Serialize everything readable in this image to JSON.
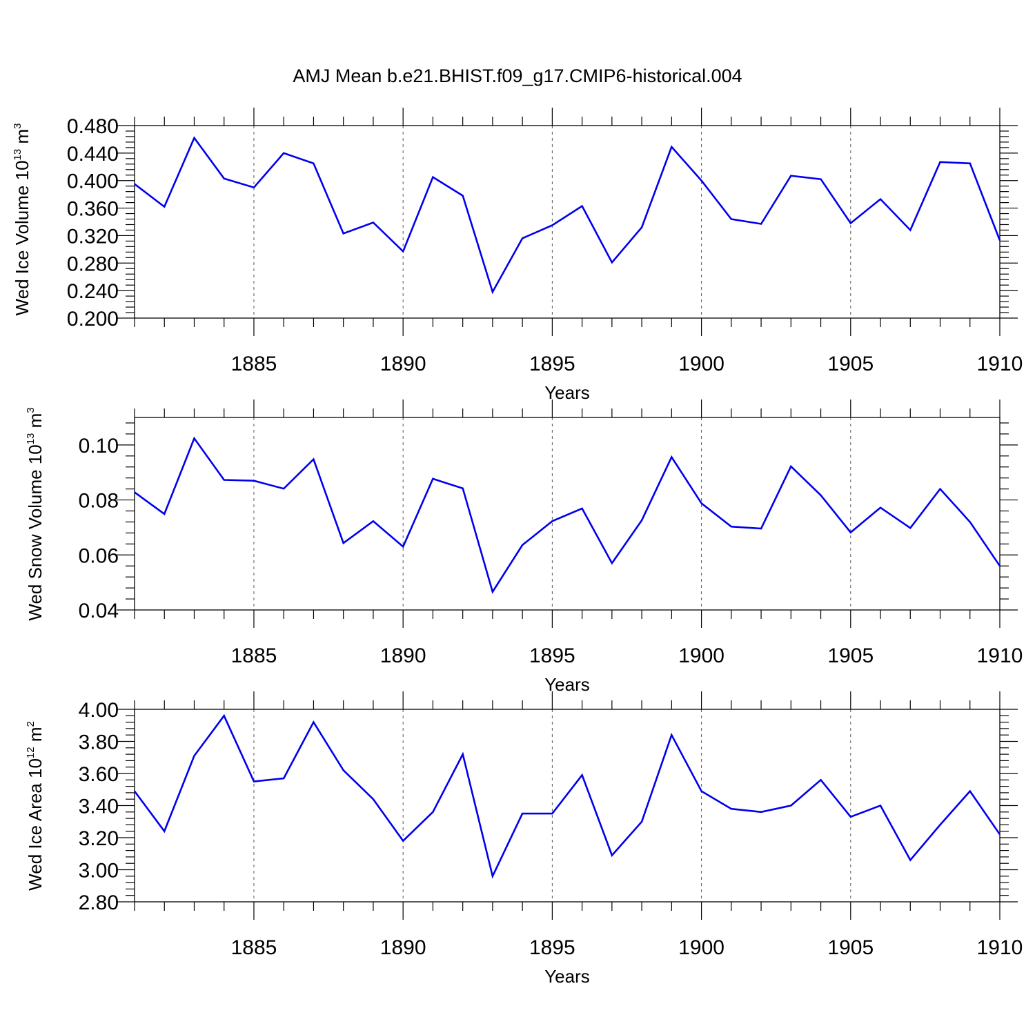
{
  "figure": {
    "title": "AMJ Mean b.e21.BHIST.f09_g17.CMIP6-historical.004"
  },
  "chart_data": [
    {
      "type": "line",
      "xlabel": "Years",
      "ylabel_base": "Wed Ice Volume 10",
      "ylabel_exp": "13",
      "ylabel_unit": " m",
      "ylabel_unit_exp": "3",
      "xlim": [
        1881,
        1910
      ],
      "ylim": [
        0.2,
        0.48
      ],
      "x_ticks": [
        "1885",
        "1890",
        "1895",
        "1900",
        "1905",
        "1910"
      ],
      "y_ticks": [
        "0.200",
        "0.240",
        "0.280",
        "0.320",
        "0.360",
        "0.400",
        "0.440",
        "0.480"
      ],
      "y_tick_values": [
        0.2,
        0.24,
        0.28,
        0.32,
        0.36,
        0.4,
        0.44,
        0.48
      ],
      "color": "#0000ee",
      "x": [
        1881,
        1882,
        1883,
        1884,
        1885,
        1886,
        1887,
        1888,
        1889,
        1890,
        1891,
        1892,
        1893,
        1894,
        1895,
        1896,
        1897,
        1898,
        1899,
        1900,
        1901,
        1902,
        1903,
        1904,
        1905,
        1906,
        1907,
        1908,
        1909,
        1910
      ],
      "values": [
        0.395,
        0.362,
        0.462,
        0.403,
        0.39,
        0.44,
        0.425,
        0.323,
        0.339,
        0.297,
        0.405,
        0.378,
        0.238,
        0.316,
        0.335,
        0.363,
        0.281,
        0.332,
        0.449,
        0.4,
        0.344,
        0.337,
        0.407,
        0.402,
        0.338,
        0.373,
        0.328,
        0.427,
        0.425,
        0.313
      ]
    },
    {
      "type": "line",
      "xlabel": "Years",
      "ylabel_base": "Wed Snow Volume 10",
      "ylabel_exp": "13",
      "ylabel_unit": " m",
      "ylabel_unit_exp": "3",
      "xlim": [
        1881,
        1910
      ],
      "ylim": [
        0.04,
        0.11
      ],
      "x_ticks": [
        "1885",
        "1890",
        "1895",
        "1900",
        "1905",
        "1910"
      ],
      "y_ticks": [
        "0.04",
        "0.06",
        "0.08",
        "0.10"
      ],
      "y_tick_values": [
        0.04,
        0.06,
        0.08,
        0.1
      ],
      "color": "#0000ee",
      "x": [
        1881,
        1882,
        1883,
        1884,
        1885,
        1886,
        1887,
        1888,
        1889,
        1890,
        1891,
        1892,
        1893,
        1894,
        1895,
        1896,
        1897,
        1898,
        1899,
        1900,
        1901,
        1902,
        1903,
        1904,
        1905,
        1906,
        1907,
        1908,
        1909,
        1910
      ],
      "values": [
        0.0828,
        0.0749,
        0.1024,
        0.0873,
        0.087,
        0.0841,
        0.0948,
        0.0643,
        0.0723,
        0.063,
        0.0877,
        0.0842,
        0.0466,
        0.0636,
        0.0723,
        0.0769,
        0.057,
        0.0726,
        0.0956,
        0.0788,
        0.0703,
        0.0696,
        0.0922,
        0.0817,
        0.0682,
        0.0772,
        0.0698,
        0.084,
        0.072,
        0.056
      ]
    },
    {
      "type": "line",
      "xlabel": "Years",
      "ylabel_base": "Wed Ice Area 10",
      "ylabel_exp": "12",
      "ylabel_unit": " m",
      "ylabel_unit_exp": "2",
      "xlim": [
        1881,
        1910
      ],
      "ylim": [
        2.8,
        4.0
      ],
      "x_ticks": [
        "1885",
        "1890",
        "1895",
        "1900",
        "1905",
        "1910"
      ],
      "y_ticks": [
        "2.80",
        "3.00",
        "3.20",
        "3.40",
        "3.60",
        "3.80",
        "4.00"
      ],
      "y_tick_values": [
        2.8,
        3.0,
        3.2,
        3.4,
        3.6,
        3.8,
        4.0
      ],
      "color": "#0000ee",
      "x": [
        1881,
        1882,
        1883,
        1884,
        1885,
        1886,
        1887,
        1888,
        1889,
        1890,
        1891,
        1892,
        1893,
        1894,
        1895,
        1896,
        1897,
        1898,
        1899,
        1900,
        1901,
        1902,
        1903,
        1904,
        1905,
        1906,
        1907,
        1908,
        1909,
        1910
      ],
      "values": [
        3.49,
        3.24,
        3.71,
        3.96,
        3.55,
        3.57,
        3.92,
        3.62,
        3.44,
        3.18,
        3.36,
        3.72,
        2.96,
        3.35,
        3.35,
        3.59,
        3.09,
        3.3,
        3.84,
        3.49,
        3.38,
        3.36,
        3.4,
        3.56,
        3.33,
        3.4,
        3.06,
        3.28,
        3.49,
        3.22
      ]
    }
  ]
}
